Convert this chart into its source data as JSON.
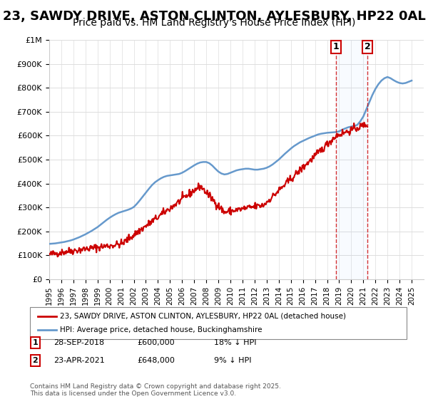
{
  "title": "23, SAWDY DRIVE, ASTON CLINTON, AYLESBURY, HP22 0AL",
  "subtitle": "Price paid vs. HM Land Registry's House Price Index (HPI)",
  "title_fontsize": 13,
  "subtitle_fontsize": 10,
  "background_color": "#ffffff",
  "plot_bg_color": "#ffffff",
  "grid_color": "#dddddd",
  "ylim": [
    0,
    1000000
  ],
  "xlim_start": 1995.0,
  "xlim_end": 2026.0,
  "yticks": [
    0,
    100000,
    200000,
    300000,
    400000,
    500000,
    600000,
    700000,
    800000,
    900000,
    1000000
  ],
  "ytick_labels": [
    "£0",
    "£100K",
    "£200K",
    "£300K",
    "£400K",
    "£500K",
    "£600K",
    "£700K",
    "£800K",
    "£900K",
    "£1M"
  ],
  "xticks": [
    1995,
    1996,
    1997,
    1998,
    1999,
    2000,
    2001,
    2002,
    2003,
    2004,
    2005,
    2006,
    2007,
    2008,
    2009,
    2010,
    2011,
    2012,
    2013,
    2014,
    2015,
    2016,
    2017,
    2018,
    2019,
    2020,
    2021,
    2022,
    2023,
    2024,
    2025
  ],
  "line_red_color": "#cc0000",
  "line_blue_color": "#6699cc",
  "vline_color": "#cc0000",
  "vline_style": "--",
  "marker1_x": 2018.75,
  "marker2_x": 2021.33,
  "marker1_label": "1",
  "marker2_label": "2",
  "legend_label_red": "23, SAWDY DRIVE, ASTON CLINTON, AYLESBURY, HP22 0AL (detached house)",
  "legend_label_blue": "HPI: Average price, detached house, Buckinghamshire",
  "table_row1": [
    "1",
    "28-SEP-2018",
    "£600,000",
    "18% ↓ HPI"
  ],
  "table_row2": [
    "2",
    "23-APR-2021",
    "£648,000",
    "9% ↓ HPI"
  ],
  "footer": "Contains HM Land Registry data © Crown copyright and database right 2025.\nThis data is licensed under the Open Government Licence v3.0.",
  "hpi_x": [
    1995.0,
    1995.25,
    1995.5,
    1995.75,
    1996.0,
    1996.25,
    1996.5,
    1996.75,
    1997.0,
    1997.25,
    1997.5,
    1997.75,
    1998.0,
    1998.25,
    1998.5,
    1998.75,
    1999.0,
    1999.25,
    1999.5,
    1999.75,
    2000.0,
    2000.25,
    2000.5,
    2000.75,
    2001.0,
    2001.25,
    2001.5,
    2001.75,
    2002.0,
    2002.25,
    2002.5,
    2002.75,
    2003.0,
    2003.25,
    2003.5,
    2003.75,
    2004.0,
    2004.25,
    2004.5,
    2004.75,
    2005.0,
    2005.25,
    2005.5,
    2005.75,
    2006.0,
    2006.25,
    2006.5,
    2006.75,
    2007.0,
    2007.25,
    2007.5,
    2007.75,
    2008.0,
    2008.25,
    2008.5,
    2008.75,
    2009.0,
    2009.25,
    2009.5,
    2009.75,
    2010.0,
    2010.25,
    2010.5,
    2010.75,
    2011.0,
    2011.25,
    2011.5,
    2011.75,
    2012.0,
    2012.25,
    2012.5,
    2012.75,
    2013.0,
    2013.25,
    2013.5,
    2013.75,
    2014.0,
    2014.25,
    2014.5,
    2014.75,
    2015.0,
    2015.25,
    2015.5,
    2015.75,
    2016.0,
    2016.25,
    2016.5,
    2016.75,
    2017.0,
    2017.25,
    2017.5,
    2017.75,
    2018.0,
    2018.25,
    2018.5,
    2018.75,
    2019.0,
    2019.25,
    2019.5,
    2019.75,
    2020.0,
    2020.25,
    2020.5,
    2020.75,
    2021.0,
    2021.25,
    2021.5,
    2021.75,
    2022.0,
    2022.25,
    2022.5,
    2022.75,
    2023.0,
    2023.25,
    2023.5,
    2023.75,
    2024.0,
    2024.25,
    2024.5,
    2024.75,
    2025.0
  ],
  "hpi_y": [
    148000,
    149000,
    150000,
    152000,
    154000,
    156000,
    159000,
    162000,
    166000,
    171000,
    176000,
    182000,
    188000,
    195000,
    202000,
    210000,
    218000,
    228000,
    238000,
    248000,
    257000,
    265000,
    272000,
    278000,
    282000,
    286000,
    290000,
    295000,
    302000,
    315000,
    330000,
    346000,
    362000,
    378000,
    393000,
    405000,
    414000,
    422000,
    428000,
    432000,
    434000,
    436000,
    438000,
    440000,
    445000,
    452000,
    460000,
    468000,
    476000,
    483000,
    488000,
    490000,
    490000,
    485000,
    475000,
    462000,
    450000,
    442000,
    438000,
    440000,
    445000,
    450000,
    455000,
    458000,
    460000,
    462000,
    462000,
    460000,
    458000,
    458000,
    460000,
    462000,
    466000,
    472000,
    480000,
    490000,
    500000,
    512000,
    524000,
    535000,
    546000,
    556000,
    564000,
    572000,
    578000,
    584000,
    590000,
    595000,
    600000,
    605000,
    608000,
    610000,
    612000,
    613000,
    614000,
    615000,
    618000,
    625000,
    630000,
    635000,
    638000,
    640000,
    645000,
    660000,
    680000,
    710000,
    740000,
    770000,
    795000,
    815000,
    830000,
    840000,
    845000,
    840000,
    832000,
    825000,
    820000,
    818000,
    820000,
    825000,
    830000
  ],
  "price_x": [
    1995.5,
    1996.25,
    1998.5,
    2001.0,
    2007.5,
    2009.5,
    2012.75,
    2018.75,
    2021.33
  ],
  "price_y": [
    108000,
    115000,
    130000,
    148000,
    390000,
    280000,
    310000,
    600000,
    648000
  ]
}
